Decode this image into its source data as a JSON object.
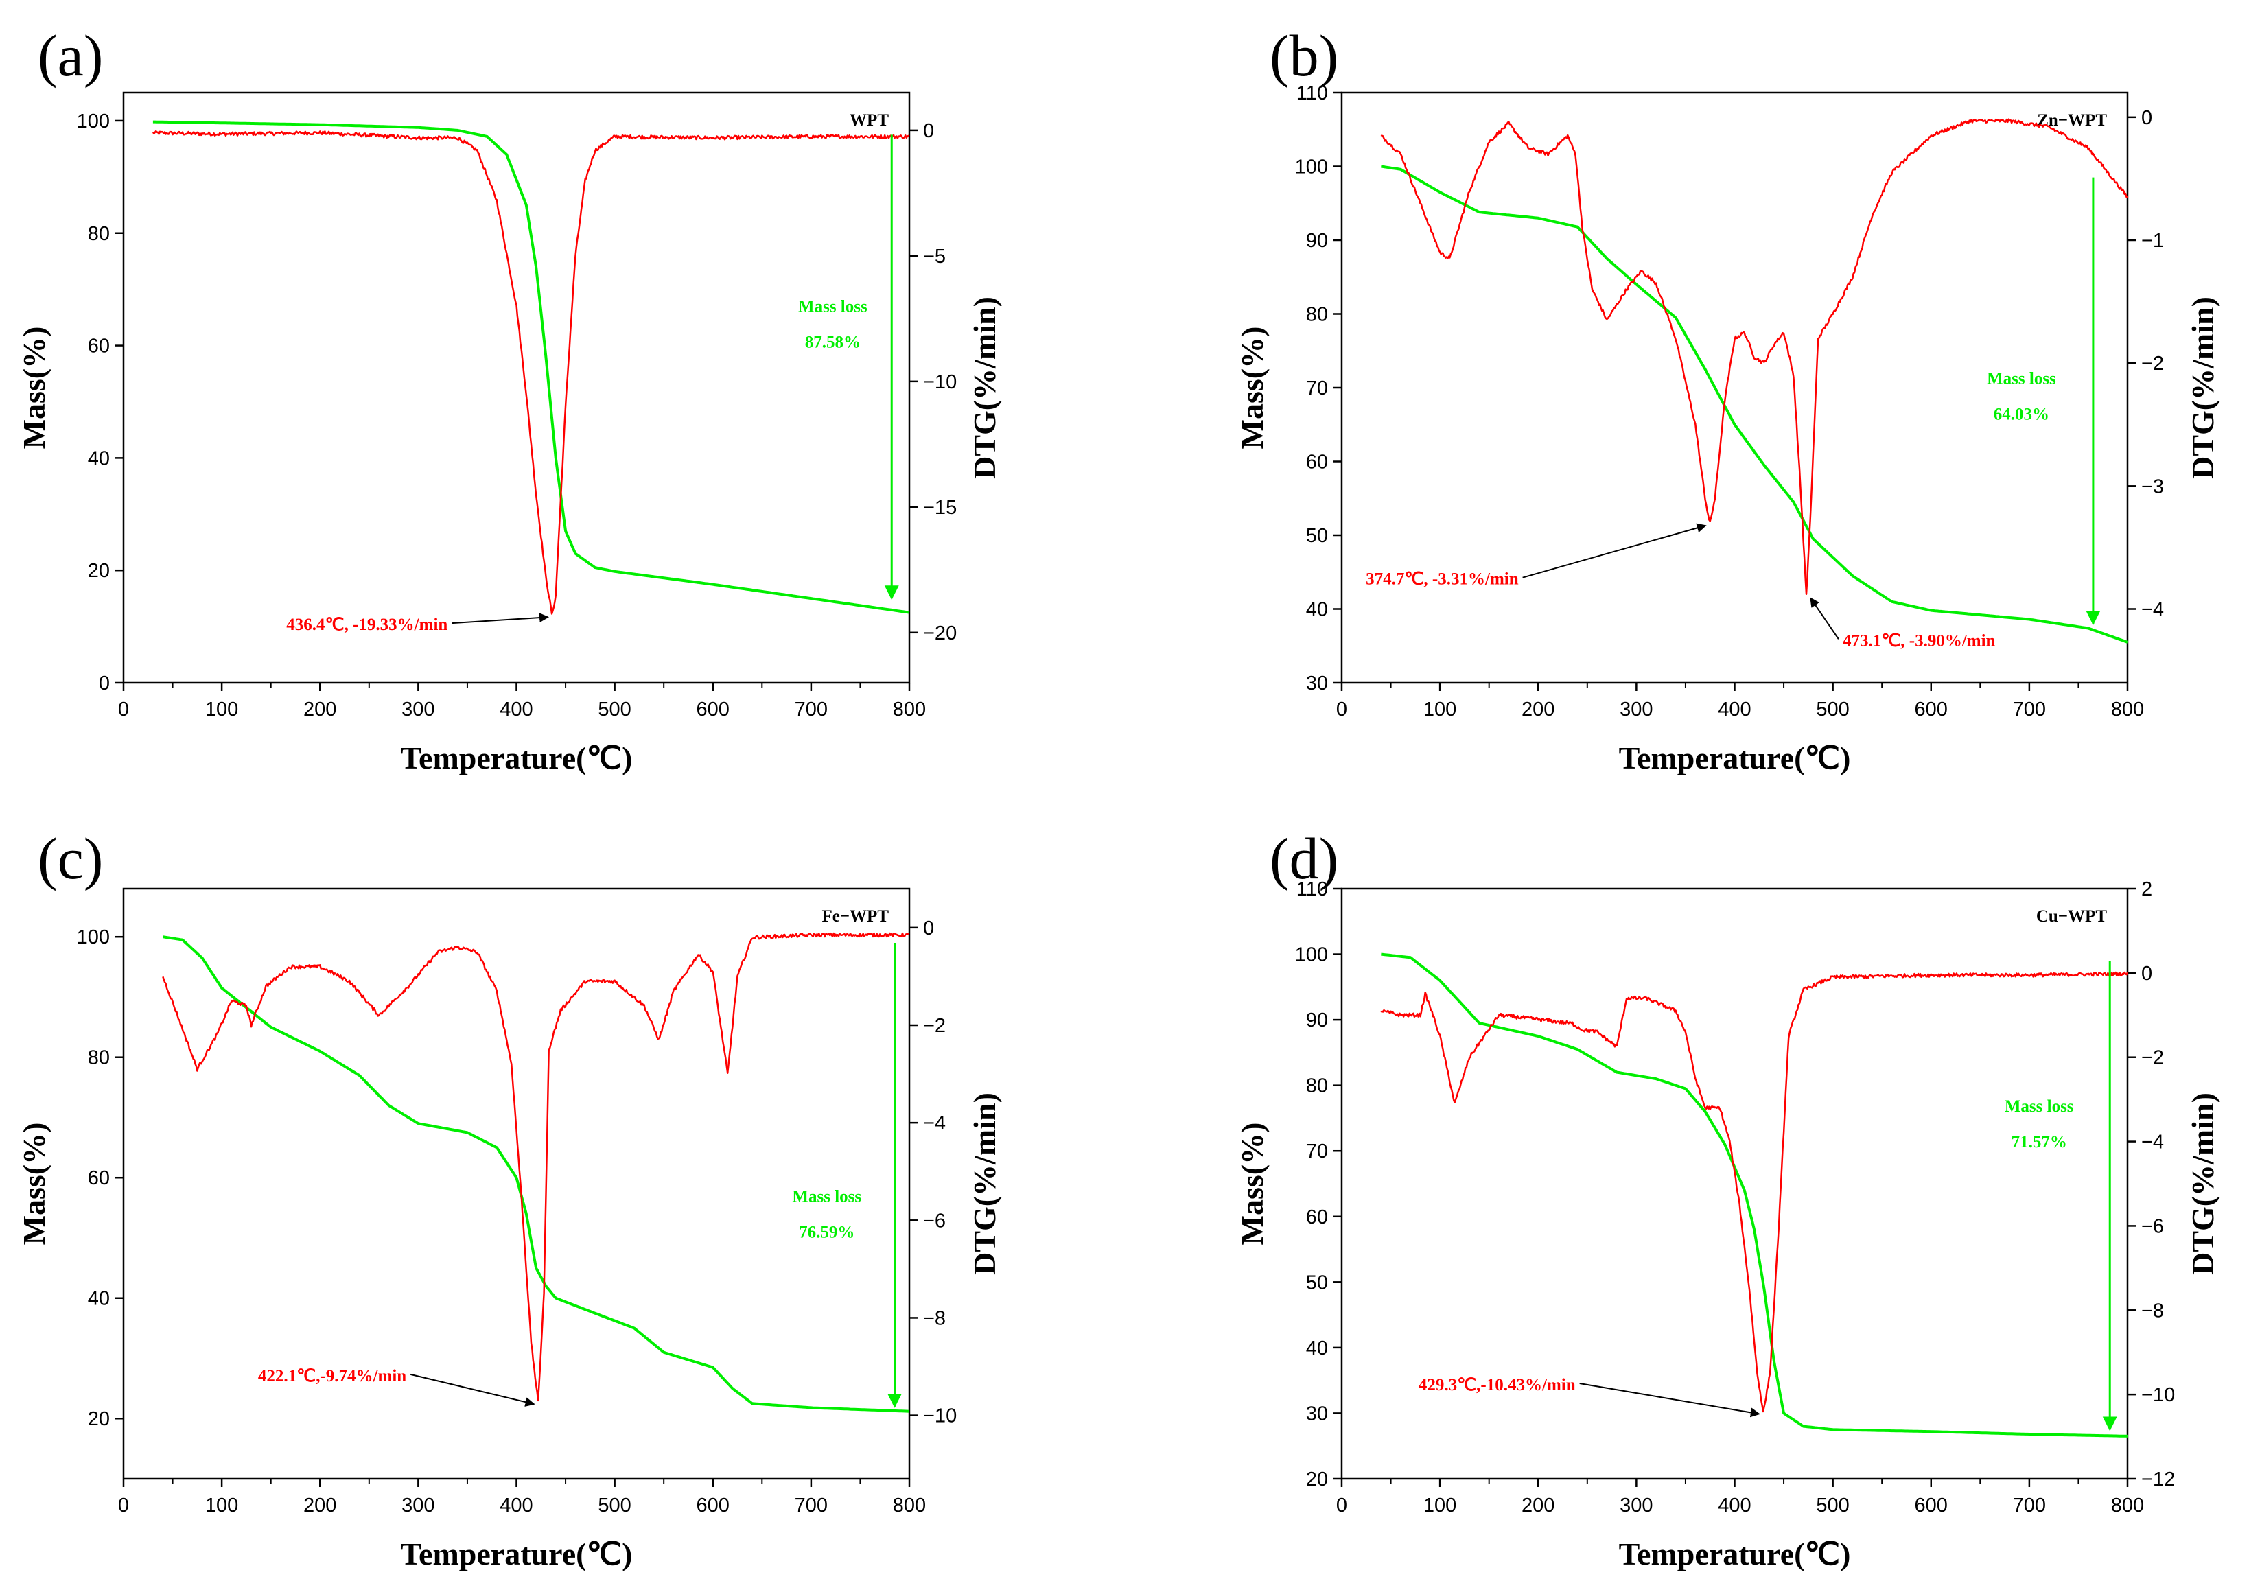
{
  "colors": {
    "tg": "#00ee00",
    "dtg": "#ff0000",
    "axis": "#000000",
    "arrow": "#000000"
  },
  "chart_data": [
    {
      "type": "line",
      "panel": "(a)",
      "title": "WPT",
      "xlabel": "Temperature(℃)",
      "ylabel": "Mass(%)",
      "y2label": "DTG(%/min)",
      "xlim": [
        0,
        800
      ],
      "ylim": [
        0,
        105
      ],
      "y2lim": [
        -22,
        1.5
      ],
      "xticks": [
        0,
        100,
        200,
        300,
        400,
        500,
        600,
        700,
        800
      ],
      "yticks": [
        0,
        20,
        40,
        60,
        80,
        100
      ],
      "y2ticks": [
        0,
        -5,
        -10,
        -15,
        -20
      ],
      "mass_loss_label": "Mass loss",
      "mass_loss_value": "87.58%",
      "mass_loss_arrow": {
        "x": 782,
        "from": 97.5,
        "to": 15
      },
      "mass_loss_text_at": [
        722,
        66
      ],
      "peaks": [
        {
          "label": "436.4℃, -19.33%/min",
          "x": 436.4,
          "y": -19.33,
          "text_at": [
            330,
            -19.9
          ]
        }
      ],
      "series": [
        {
          "name": "TG",
          "axis": "left",
          "x": [
            30,
            100,
            200,
            300,
            340,
            370,
            390,
            410,
            420,
            430,
            440,
            450,
            460,
            480,
            500,
            600,
            700,
            800
          ],
          "values": [
            99.8,
            99.6,
            99.3,
            98.8,
            98.3,
            97.2,
            94,
            85,
            74,
            58,
            40,
            27,
            23,
            20.5,
            19.8,
            17.5,
            15,
            12.5
          ]
        },
        {
          "name": "DTG",
          "axis": "right",
          "x": [
            30,
            100,
            200,
            300,
            340,
            360,
            380,
            400,
            410,
            420,
            430,
            436.4,
            440,
            450,
            460,
            470,
            480,
            500,
            600,
            700,
            800
          ],
          "values": [
            -0.1,
            -0.15,
            -0.1,
            -0.3,
            -0.3,
            -0.8,
            -2.8,
            -7,
            -10.5,
            -14.5,
            -17.8,
            -19.33,
            -18.5,
            -11,
            -5,
            -2,
            -0.8,
            -0.25,
            -0.3,
            -0.25,
            -0.25
          ]
        }
      ]
    },
    {
      "type": "line",
      "panel": "(b)",
      "title": "Zn−WPT",
      "xlabel": "Temperature(℃)",
      "ylabel": "Mass(%)",
      "y2label": "DTG(%/min)",
      "xlim": [
        0,
        800
      ],
      "ylim": [
        30,
        110
      ],
      "y2lim": [
        -4.6,
        0.2
      ],
      "xticks": [
        0,
        100,
        200,
        300,
        400,
        500,
        600,
        700,
        800
      ],
      "yticks": [
        30,
        40,
        50,
        60,
        70,
        80,
        90,
        100,
        110
      ],
      "y2ticks": [
        0,
        -1,
        -2,
        -3,
        -4
      ],
      "mass_loss_label": "Mass loss",
      "mass_loss_value": "64.03%",
      "mass_loss_arrow": {
        "x": 765,
        "from": 98.5,
        "to": 38
      },
      "mass_loss_text_at": [
        692,
        70.5
      ],
      "peaks": [
        {
          "label": "374.7℃, -3.31%/min",
          "x": 374.7,
          "y": -3.31,
          "text_at": [
            180,
            -3.8
          ]
        },
        {
          "label": "473.1℃, -3.90%/min",
          "x": 473.1,
          "y": -3.9,
          "text_at": [
            510,
            -4.3
          ]
        }
      ],
      "series": [
        {
          "name": "TG",
          "axis": "left",
          "x": [
            40,
            60,
            100,
            140,
            200,
            240,
            270,
            300,
            340,
            370,
            400,
            430,
            460,
            480,
            500,
            520,
            560,
            600,
            700,
            760,
            800
          ],
          "values": [
            100,
            99.6,
            96.5,
            93.8,
            93,
            91.8,
            87.5,
            84,
            79.5,
            72.5,
            65,
            59.5,
            54.5,
            49.5,
            47,
            44.5,
            41,
            39.8,
            38.6,
            37.4,
            35.5
          ]
        },
        {
          "name": "DTG",
          "axis": "right",
          "x": [
            40,
            60,
            80,
            100,
            110,
            130,
            150,
            170,
            190,
            210,
            230,
            238,
            245,
            255,
            270,
            290,
            305,
            320,
            340,
            360,
            370,
            374.7,
            380,
            390,
            400,
            410,
            420,
            430,
            440,
            450,
            460,
            467,
            473.1,
            478,
            485,
            500,
            520,
            540,
            560,
            600,
            640,
            680,
            720,
            760,
            800
          ],
          "values": [
            -0.15,
            -0.3,
            -0.7,
            -1.1,
            -1.15,
            -0.6,
            -0.2,
            -0.05,
            -0.25,
            -0.3,
            -0.15,
            -0.3,
            -0.9,
            -1.4,
            -1.65,
            -1.4,
            -1.25,
            -1.35,
            -1.8,
            -2.5,
            -3.1,
            -3.31,
            -3.1,
            -2.3,
            -1.8,
            -1.75,
            -1.95,
            -2.0,
            -1.85,
            -1.75,
            -2.1,
            -3.0,
            -3.9,
            -3.1,
            -1.8,
            -1.6,
            -1.3,
            -0.8,
            -0.45,
            -0.15,
            -0.03,
            -0.03,
            -0.08,
            -0.25,
            -0.65
          ]
        }
      ]
    },
    {
      "type": "line",
      "panel": "(c)",
      "title": "Fe−WPT",
      "xlabel": "Temperature(℃)",
      "ylabel": "Mass(%)",
      "y2label": "DTG(%/min)",
      "xlim": [
        0,
        800
      ],
      "ylim": [
        10,
        108
      ],
      "y2lim": [
        -11.3,
        0.8
      ],
      "xticks": [
        0,
        100,
        200,
        300,
        400,
        500,
        600,
        700,
        800
      ],
      "yticks": [
        20,
        40,
        60,
        80,
        100
      ],
      "y2ticks": [
        0,
        -2,
        -4,
        -6,
        -8,
        -10
      ],
      "mass_loss_label": "Mass loss",
      "mass_loss_value": "76.59%",
      "mass_loss_arrow": {
        "x": 785,
        "from": 99,
        "to": 22
      },
      "mass_loss_text_at": [
        716,
        56
      ],
      "peaks": [
        {
          "label": "422.1℃,-9.74%/min",
          "x": 422.1,
          "y": -9.74,
          "text_at": [
            288,
            -9.3
          ]
        }
      ],
      "series": [
        {
          "name": "TG",
          "axis": "left",
          "x": [
            40,
            60,
            80,
            100,
            150,
            200,
            240,
            270,
            300,
            350,
            380,
            400,
            410,
            420,
            430,
            440,
            480,
            520,
            550,
            600,
            620,
            640,
            700,
            800
          ],
          "values": [
            100,
            99.5,
            96.5,
            91.5,
            85,
            81,
            77,
            72,
            69,
            67.5,
            65,
            60,
            54,
            45,
            42,
            40,
            37.5,
            35,
            31,
            28.5,
            25,
            22.5,
            21.8,
            21.2
          ]
        },
        {
          "name": "DTG",
          "axis": "right",
          "x": [
            40,
            55,
            75,
            95,
            110,
            125,
            130,
            145,
            170,
            200,
            230,
            260,
            290,
            320,
            340,
            360,
            380,
            395,
            405,
            415,
            422.1,
            428,
            433,
            445,
            470,
            500,
            530,
            545,
            560,
            585,
            600,
            615,
            625,
            640,
            700,
            800
          ],
          "values": [
            -1.0,
            -1.8,
            -2.9,
            -2.2,
            -1.5,
            -1.6,
            -2.0,
            -1.2,
            -0.8,
            -0.8,
            -1.1,
            -1.8,
            -1.2,
            -0.5,
            -0.4,
            -0.5,
            -1.3,
            -2.8,
            -5.5,
            -8.5,
            -9.74,
            -7.5,
            -2.5,
            -1.7,
            -1.1,
            -1.1,
            -1.6,
            -2.3,
            -1.3,
            -0.55,
            -0.9,
            -3.0,
            -1.0,
            -0.2,
            -0.15,
            -0.15
          ]
        }
      ]
    },
    {
      "type": "line",
      "panel": "(d)",
      "title": "Cu−WPT",
      "xlabel": "Temperature(℃)",
      "ylabel": "Mass(%)",
      "y2label": "DTG(%/min)",
      "xlim": [
        0,
        800
      ],
      "ylim": [
        20,
        110
      ],
      "y2lim": [
        -12,
        2
      ],
      "xticks": [
        0,
        100,
        200,
        300,
        400,
        500,
        600,
        700,
        800
      ],
      "yticks": [
        20,
        30,
        40,
        50,
        60,
        70,
        80,
        90,
        100,
        110
      ],
      "y2ticks": [
        2,
        0,
        -2,
        -4,
        -6,
        -8,
        -10,
        -12
      ],
      "mass_loss_label": "Mass loss",
      "mass_loss_value": "71.57%",
      "mass_loss_arrow": {
        "x": 782,
        "from": 99,
        "to": 27.5
      },
      "mass_loss_text_at": [
        710,
        76
      ],
      "peaks": [
        {
          "label": "429.3℃,-10.43%/min",
          "x": 429.3,
          "y": -10.43,
          "text_at": [
            238,
            -9.9
          ]
        }
      ],
      "series": [
        {
          "name": "TG",
          "axis": "left",
          "x": [
            40,
            70,
            100,
            140,
            200,
            240,
            280,
            320,
            350,
            370,
            390,
            410,
            420,
            430,
            440,
            450,
            470,
            500,
            600,
            700,
            800
          ],
          "values": [
            100,
            99.5,
            96,
            89.5,
            87.5,
            85.5,
            82,
            81,
            79.5,
            76,
            71,
            64,
            58,
            49,
            38,
            30,
            28,
            27.5,
            27.2,
            26.8,
            26.5
          ]
        },
        {
          "name": "DTG",
          "axis": "right",
          "x": [
            40,
            60,
            80,
            85,
            90,
            100,
            115,
            130,
            160,
            200,
            235,
            245,
            260,
            280,
            290,
            310,
            340,
            350,
            360,
            370,
            385,
            395,
            405,
            415,
            423,
            429.3,
            436,
            445,
            455,
            470,
            500,
            600,
            700,
            800
          ],
          "values": [
            -0.9,
            -1.0,
            -1.0,
            -0.5,
            -0.8,
            -1.5,
            -3.1,
            -2.0,
            -1.0,
            -1.1,
            -1.2,
            -1.35,
            -1.4,
            -1.75,
            -0.6,
            -0.6,
            -0.9,
            -1.4,
            -2.5,
            -3.2,
            -3.2,
            -4.0,
            -5.5,
            -7.5,
            -9.5,
            -10.43,
            -9.5,
            -6.0,
            -1.5,
            -0.4,
            -0.1,
            -0.05,
            -0.05,
            -0.02
          ]
        }
      ]
    }
  ]
}
